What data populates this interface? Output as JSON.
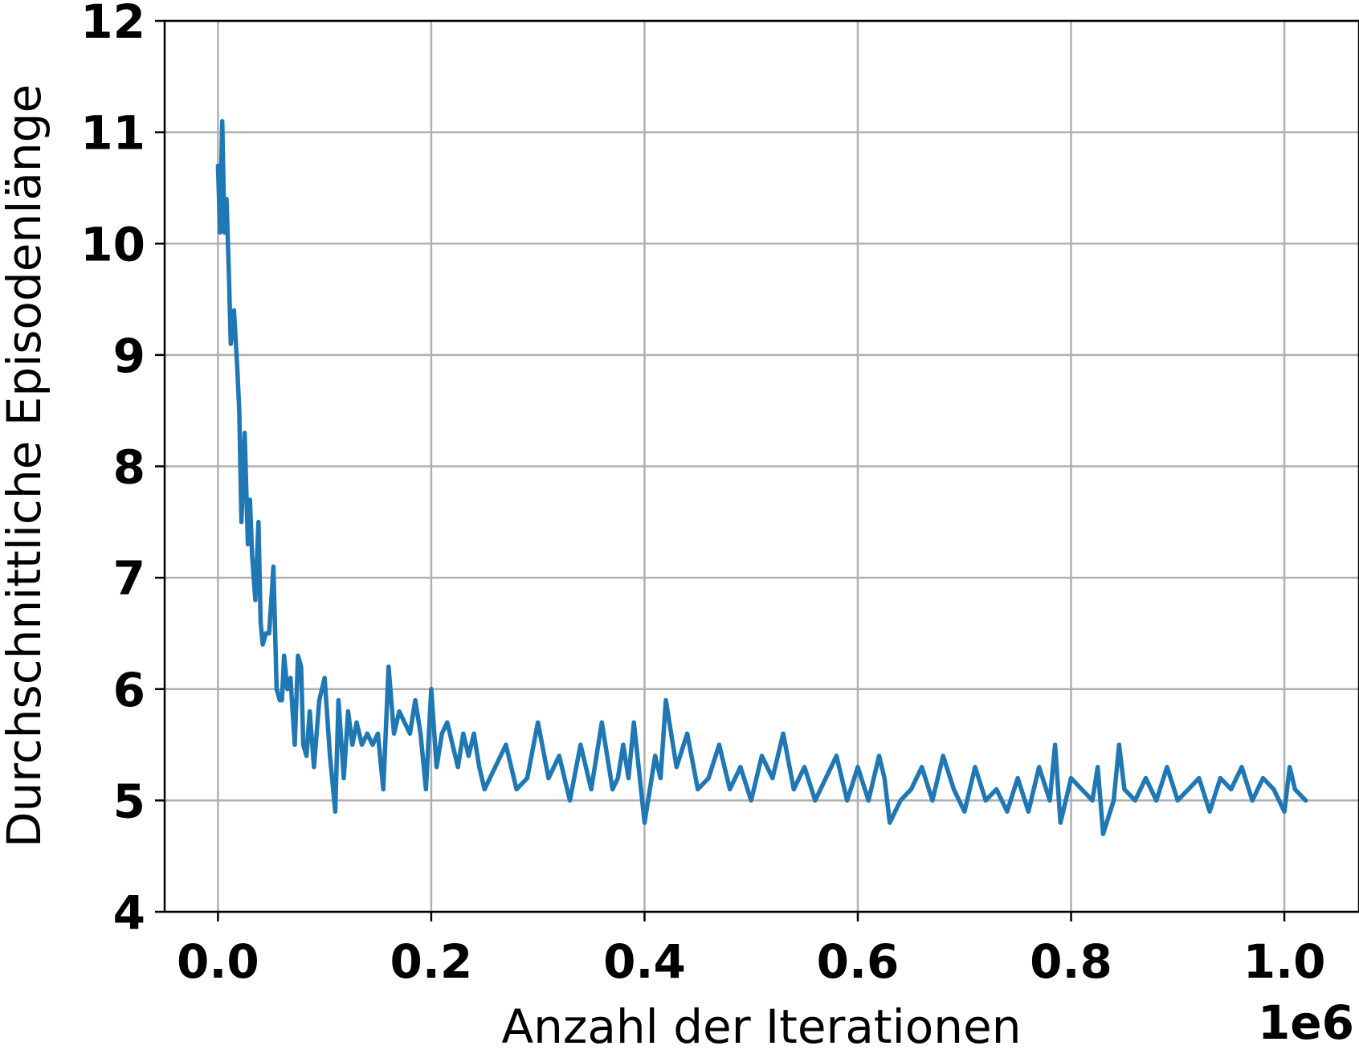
{
  "chart_data": {
    "type": "line",
    "title": "",
    "xlabel": "Anzahl der Iterationen",
    "ylabel": "Durchschnittliche Episodenlänge",
    "x_offset_label": "1e6",
    "xlim": [
      -0.05,
      1.07
    ],
    "ylim": [
      4,
      12
    ],
    "x_ticks": [
      0.0,
      0.2,
      0.4,
      0.6,
      0.8,
      1.0
    ],
    "x_tick_labels": [
      "0.0",
      "0.2",
      "0.4",
      "0.6",
      "0.8",
      "1.0"
    ],
    "y_ticks": [
      4,
      5,
      6,
      7,
      8,
      9,
      10,
      11,
      12
    ],
    "y_tick_labels": [
      "4",
      "5",
      "6",
      "7",
      "8",
      "9",
      "10",
      "11",
      "12"
    ],
    "grid": true,
    "legend": "none",
    "series": [
      {
        "color": "#1f77b4",
        "x": [
          0.0,
          0.002,
          0.004,
          0.006,
          0.008,
          0.01,
          0.012,
          0.015,
          0.018,
          0.02,
          0.022,
          0.025,
          0.028,
          0.03,
          0.032,
          0.035,
          0.038,
          0.04,
          0.042,
          0.045,
          0.048,
          0.05,
          0.052,
          0.055,
          0.058,
          0.06,
          0.062,
          0.065,
          0.068,
          0.07,
          0.072,
          0.075,
          0.078,
          0.08,
          0.083,
          0.086,
          0.09,
          0.095,
          0.1,
          0.105,
          0.11,
          0.113,
          0.118,
          0.122,
          0.126,
          0.13,
          0.135,
          0.14,
          0.145,
          0.15,
          0.155,
          0.16,
          0.165,
          0.17,
          0.175,
          0.18,
          0.185,
          0.19,
          0.195,
          0.2,
          0.205,
          0.21,
          0.215,
          0.22,
          0.225,
          0.23,
          0.235,
          0.24,
          0.245,
          0.25,
          0.26,
          0.27,
          0.28,
          0.29,
          0.3,
          0.31,
          0.32,
          0.33,
          0.34,
          0.35,
          0.36,
          0.37,
          0.375,
          0.38,
          0.385,
          0.39,
          0.4,
          0.41,
          0.415,
          0.42,
          0.43,
          0.44,
          0.45,
          0.46,
          0.47,
          0.48,
          0.49,
          0.5,
          0.51,
          0.52,
          0.53,
          0.54,
          0.55,
          0.56,
          0.57,
          0.58,
          0.59,
          0.6,
          0.61,
          0.62,
          0.625,
          0.63,
          0.64,
          0.65,
          0.66,
          0.67,
          0.68,
          0.69,
          0.7,
          0.71,
          0.72,
          0.73,
          0.74,
          0.75,
          0.76,
          0.77,
          0.78,
          0.785,
          0.79,
          0.8,
          0.81,
          0.82,
          0.825,
          0.83,
          0.84,
          0.845,
          0.85,
          0.86,
          0.87,
          0.88,
          0.89,
          0.9,
          0.91,
          0.92,
          0.93,
          0.94,
          0.95,
          0.96,
          0.97,
          0.98,
          0.99,
          1.0,
          1.005,
          1.01,
          1.02
        ],
        "y": [
          10.7,
          10.1,
          11.1,
          10.1,
          10.4,
          9.8,
          9.1,
          9.4,
          8.9,
          8.5,
          7.5,
          8.3,
          7.3,
          7.7,
          7.2,
          6.8,
          7.5,
          6.6,
          6.4,
          6.5,
          6.5,
          6.8,
          7.1,
          6.0,
          5.9,
          5.9,
          6.3,
          6.0,
          6.1,
          5.8,
          5.5,
          6.3,
          6.2,
          5.5,
          5.4,
          5.8,
          5.3,
          5.9,
          6.1,
          5.4,
          4.9,
          5.9,
          5.2,
          5.8,
          5.5,
          5.7,
          5.5,
          5.6,
          5.5,
          5.6,
          5.1,
          6.2,
          5.6,
          5.8,
          5.7,
          5.6,
          5.9,
          5.6,
          5.1,
          6.0,
          5.3,
          5.6,
          5.7,
          5.5,
          5.3,
          5.6,
          5.4,
          5.6,
          5.3,
          5.1,
          5.3,
          5.5,
          5.1,
          5.2,
          5.7,
          5.2,
          5.4,
          5.0,
          5.5,
          5.1,
          5.7,
          5.1,
          5.2,
          5.5,
          5.2,
          5.7,
          4.8,
          5.4,
          5.2,
          5.9,
          5.3,
          5.6,
          5.1,
          5.2,
          5.5,
          5.1,
          5.3,
          5.0,
          5.4,
          5.2,
          5.6,
          5.1,
          5.3,
          5.0,
          5.2,
          5.4,
          5.0,
          5.3,
          5.0,
          5.4,
          5.2,
          4.8,
          5.0,
          5.1,
          5.3,
          5.0,
          5.4,
          5.1,
          4.9,
          5.3,
          5.0,
          5.1,
          4.9,
          5.2,
          4.9,
          5.3,
          5.0,
          5.5,
          4.8,
          5.2,
          5.1,
          5.0,
          5.3,
          4.7,
          5.0,
          5.5,
          5.1,
          5.0,
          5.2,
          5.0,
          5.3,
          5.0,
          5.1,
          5.2,
          4.9,
          5.2,
          5.1,
          5.3,
          5.0,
          5.2,
          5.1,
          4.9,
          5.3,
          5.1,
          5.0
        ]
      }
    ]
  }
}
